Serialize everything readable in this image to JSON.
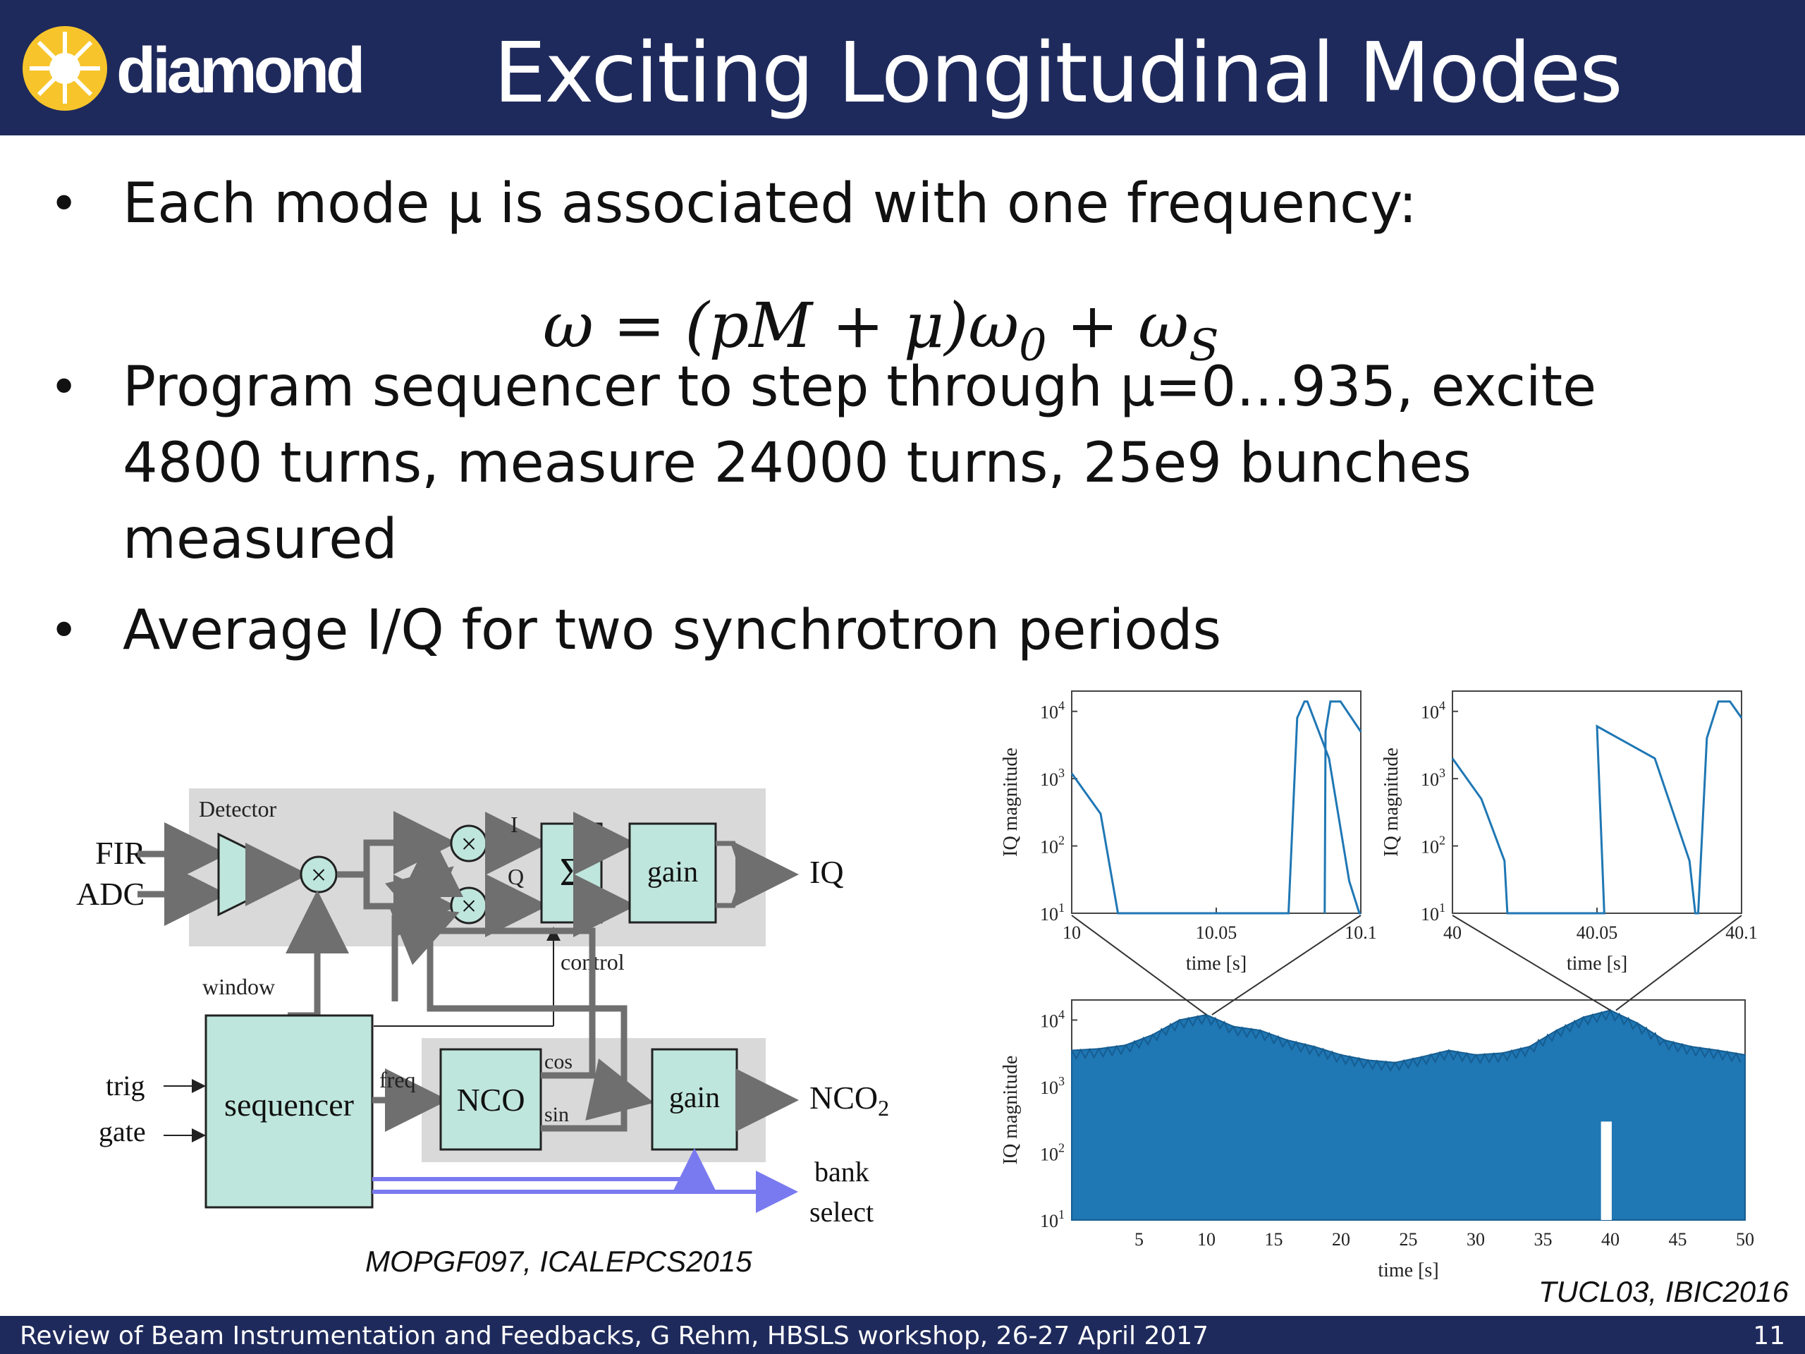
{
  "header": {
    "logo_text": "diamond",
    "title": "Exciting Longitudinal Modes"
  },
  "bullets": [
    "Each mode μ is associated with one frequency:",
    "Program sequencer to step through μ=0…935, excite 4800 turns, measure 24000 turns, 25e9 bunches measured",
    "Average I/Q for two synchrotron periods"
  ],
  "formula": {
    "lhs": "ω = (pM + μ)ω",
    "sub1": "0",
    "mid": " + ω",
    "sub2": "S"
  },
  "diagram": {
    "detector_label": "Detector",
    "fir": "FIR",
    "adc": "ADC",
    "i_label": "I",
    "q_label": "Q",
    "sigma": "Σ",
    "gain1": "gain",
    "iq_out": "IQ",
    "window": "window",
    "control": "control",
    "trig": "trig",
    "gate": "gate",
    "sequencer": "sequencer",
    "freq": "freq",
    "nco": "NCO",
    "cos": "cos",
    "sin": "sin",
    "gain2": "gain",
    "nco2": "NCO",
    "nco2_sub": "2",
    "bank": "bank",
    "select": "select",
    "multiply_symbol": "×"
  },
  "citation_left": "MOPGF097, ICALEPCS2015",
  "citation_right": "TUCL03, IBIC2016",
  "chart_data": [
    {
      "type": "line",
      "name": "zoom-left",
      "xlabel": "time [s]",
      "ylabel": "IQ magnitude",
      "xlim": [
        10,
        10.1
      ],
      "ylim": [
        10,
        20000
      ],
      "yscale": "log",
      "xticks": [
        "10",
        "10.05",
        "10.1"
      ],
      "yticks": [
        "10^1",
        "10^2",
        "10^3",
        "10^4"
      ],
      "x": [
        10.0,
        10.01,
        10.016,
        10.0165,
        10.0745,
        10.075,
        10.078,
        10.0805,
        10.0815,
        10.089,
        10.096,
        10.0995,
        10.1
      ],
      "y": [
        1200,
        300,
        10,
        10,
        10,
        10,
        8000,
        14000,
        14000,
        2000,
        30,
        10,
        10
      ],
      "series2": {
        "x": [
          10.0875,
          10.0878,
          10.0895,
          10.093,
          10.1
        ],
        "y": [
          10,
          5000,
          14000,
          14000,
          5000
        ]
      }
    },
    {
      "type": "line",
      "name": "zoom-right",
      "xlabel": "time [s]",
      "ylabel": "IQ magnitude",
      "xlim": [
        40,
        40.1
      ],
      "ylim": [
        10,
        20000
      ],
      "yscale": "log",
      "xticks": [
        "40",
        "40.05",
        "40.1"
      ],
      "yticks": [
        "10^1",
        "10^2",
        "10^3",
        "10^4"
      ],
      "x": [
        40.0,
        40.01,
        40.018,
        40.019,
        40.045,
        40.047,
        40.0525,
        40.05,
        40.07,
        40.082,
        40.084,
        40.085,
        40.088,
        40.092,
        40.096,
        40.1
      ],
      "y": [
        2000,
        500,
        60,
        10,
        10,
        10,
        10,
        6000,
        2000,
        60,
        10,
        10,
        4000,
        14000,
        14000,
        8000
      ]
    },
    {
      "type": "area",
      "name": "overview",
      "xlabel": "time [s]",
      "ylabel": "IQ magnitude",
      "xlim": [
        0,
        50
      ],
      "ylim": [
        10,
        20000
      ],
      "yscale": "log",
      "xticks": [
        "5",
        "10",
        "15",
        "20",
        "25",
        "30",
        "35",
        "40",
        "45",
        "50"
      ],
      "yticks": [
        "10^1",
        "10^2",
        "10^3",
        "10^4"
      ],
      "x": [
        0,
        2,
        4,
        6,
        8,
        10,
        12,
        14,
        16,
        18,
        20,
        22,
        24,
        26,
        28,
        30,
        32,
        34,
        36,
        38,
        40,
        42,
        44,
        46,
        48,
        50
      ],
      "y": [
        3500,
        3700,
        4200,
        6000,
        10000,
        12000,
        8000,
        7000,
        5000,
        4000,
        3000,
        2500,
        2300,
        2800,
        3500,
        3000,
        3200,
        4000,
        7000,
        11000,
        14000,
        9000,
        5000,
        4000,
        3500,
        3000
      ]
    }
  ],
  "footer": {
    "text": "Review of Beam Instrumentation and Feedbacks, G Rehm, HBSLS workshop, 26-27 April 2017",
    "page": "11"
  }
}
